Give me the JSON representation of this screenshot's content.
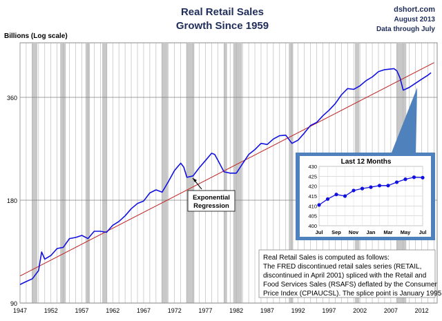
{
  "chart_data": [
    {
      "type": "line",
      "title": "Real Retail Sales",
      "subtitle": "Growth Since 1959",
      "source": "dshort.com",
      "date_line": "August 2013",
      "data_note": "Data through July",
      "ylabel": "Billions (Log scale)",
      "yscale": "log",
      "ylim": [
        90,
        520
      ],
      "xlim": [
        1947,
        2014.5
      ],
      "yticks": [
        90,
        180,
        360
      ],
      "xticks": [
        1947,
        1952,
        1957,
        1962,
        1967,
        1972,
        1977,
        1982,
        1987,
        1992,
        1997,
        2002,
        2007,
        2012
      ],
      "grid": true,
      "colors": {
        "series": "#1010e0",
        "trend": "#c02020",
        "recession": "#c8c8c8",
        "inset_bg": "#ffffff",
        "callout": "#4f81bd"
      },
      "recessions": [
        [
          1948.9,
          1949.8
        ],
        [
          1953.5,
          1954.4
        ],
        [
          1957.6,
          1958.3
        ],
        [
          1960.3,
          1961.1
        ],
        [
          1969.9,
          1970.9
        ],
        [
          1973.9,
          1975.2
        ],
        [
          1980.0,
          1980.5
        ],
        [
          1981.5,
          1982.9
        ],
        [
          1990.5,
          1991.2
        ],
        [
          2001.2,
          2001.9
        ],
        [
          2007.9,
          2009.5
        ]
      ],
      "series": [
        {
          "name": "Real Retail Sales",
          "x": [
            1947.0,
            1948.0,
            1949.0,
            1950.0,
            1950.5,
            1951.0,
            1952.0,
            1953.0,
            1954.0,
            1955.0,
            1956.0,
            1957.0,
            1958.0,
            1959.0,
            1960.0,
            1961.0,
            1962.0,
            1963.0,
            1964.0,
            1965.0,
            1966.0,
            1967.0,
            1968.0,
            1969.0,
            1970.0,
            1971.0,
            1972.0,
            1973.0,
            1973.5,
            1974.0,
            1975.0,
            1976.0,
            1977.0,
            1978.0,
            1978.5,
            1979.0,
            1980.0,
            1981.0,
            1982.0,
            1983.0,
            1984.0,
            1985.0,
            1986.0,
            1987.0,
            1988.0,
            1989.0,
            1990.0,
            1991.0,
            1992.0,
            1993.0,
            1994.0,
            1995.0,
            1996.0,
            1997.0,
            1998.0,
            1999.0,
            2000.0,
            2001.0,
            2002.0,
            2003.0,
            2004.0,
            2005.0,
            2006.0,
            2007.0,
            2007.5,
            2008.0,
            2008.5,
            2009.0,
            2010.0,
            2011.0,
            2012.0,
            2013.0,
            2013.5
          ],
          "y": [
            102,
            104,
            106,
            112,
            127,
            121,
            124,
            130,
            131,
            139,
            140,
            142,
            139,
            146,
            146,
            145,
            152,
            156,
            162,
            170,
            176,
            179,
            189,
            193,
            190,
            204,
            220,
            231,
            225,
            210,
            212,
            224,
            235,
            247,
            245,
            236,
            218,
            216,
            216,
            230,
            245,
            253,
            264,
            262,
            272,
            278,
            279,
            264,
            270,
            283,
            298,
            304,
            318,
            330,
            345,
            366,
            382,
            380,
            389,
            403,
            413,
            428,
            434,
            436,
            437,
            430,
            410,
            378,
            385,
            396,
            407,
            418,
            425
          ]
        },
        {
          "name": "Exponential Regression",
          "x": [
            1947.0,
            2014.0
          ],
          "y": [
            108,
            455
          ]
        }
      ],
      "annotations": [
        {
          "text": [
            "Exponential",
            "Regression"
          ]
        }
      ]
    },
    {
      "type": "line",
      "title": "Last 12 Months",
      "categories": [
        "Jul",
        "Aug",
        "Sep",
        "Oct",
        "Nov",
        "Dec",
        "Jan",
        "Feb",
        "Mar",
        "Apr",
        "May",
        "Jun",
        "Jul"
      ],
      "tick_labels": [
        "Jul",
        "Sep",
        "Nov",
        "Jan",
        "Mar",
        "May",
        "Jul"
      ],
      "yticks": [
        400,
        405,
        410,
        415,
        420,
        425,
        430
      ],
      "ylim": [
        400,
        430
      ],
      "grid": true,
      "series": [
        {
          "values": [
            410.5,
            413.5,
            415.8,
            415.0,
            417.8,
            418.8,
            419.5,
            420.3,
            420.3,
            422.0,
            423.5,
            424.5,
            424.3
          ]
        }
      ]
    }
  ],
  "note": {
    "lines": [
      "Real Retail Sales is computed as follows:",
      "The FRED discontinued retail sales series (RETAIL,",
      "discontinued in April 2001) spliced with the Retail and",
      "Food Services Sales (RSAFS) deflated by the Consumer",
      "Price Index (CPIAUCSL). The splice point is January 1995."
    ]
  }
}
